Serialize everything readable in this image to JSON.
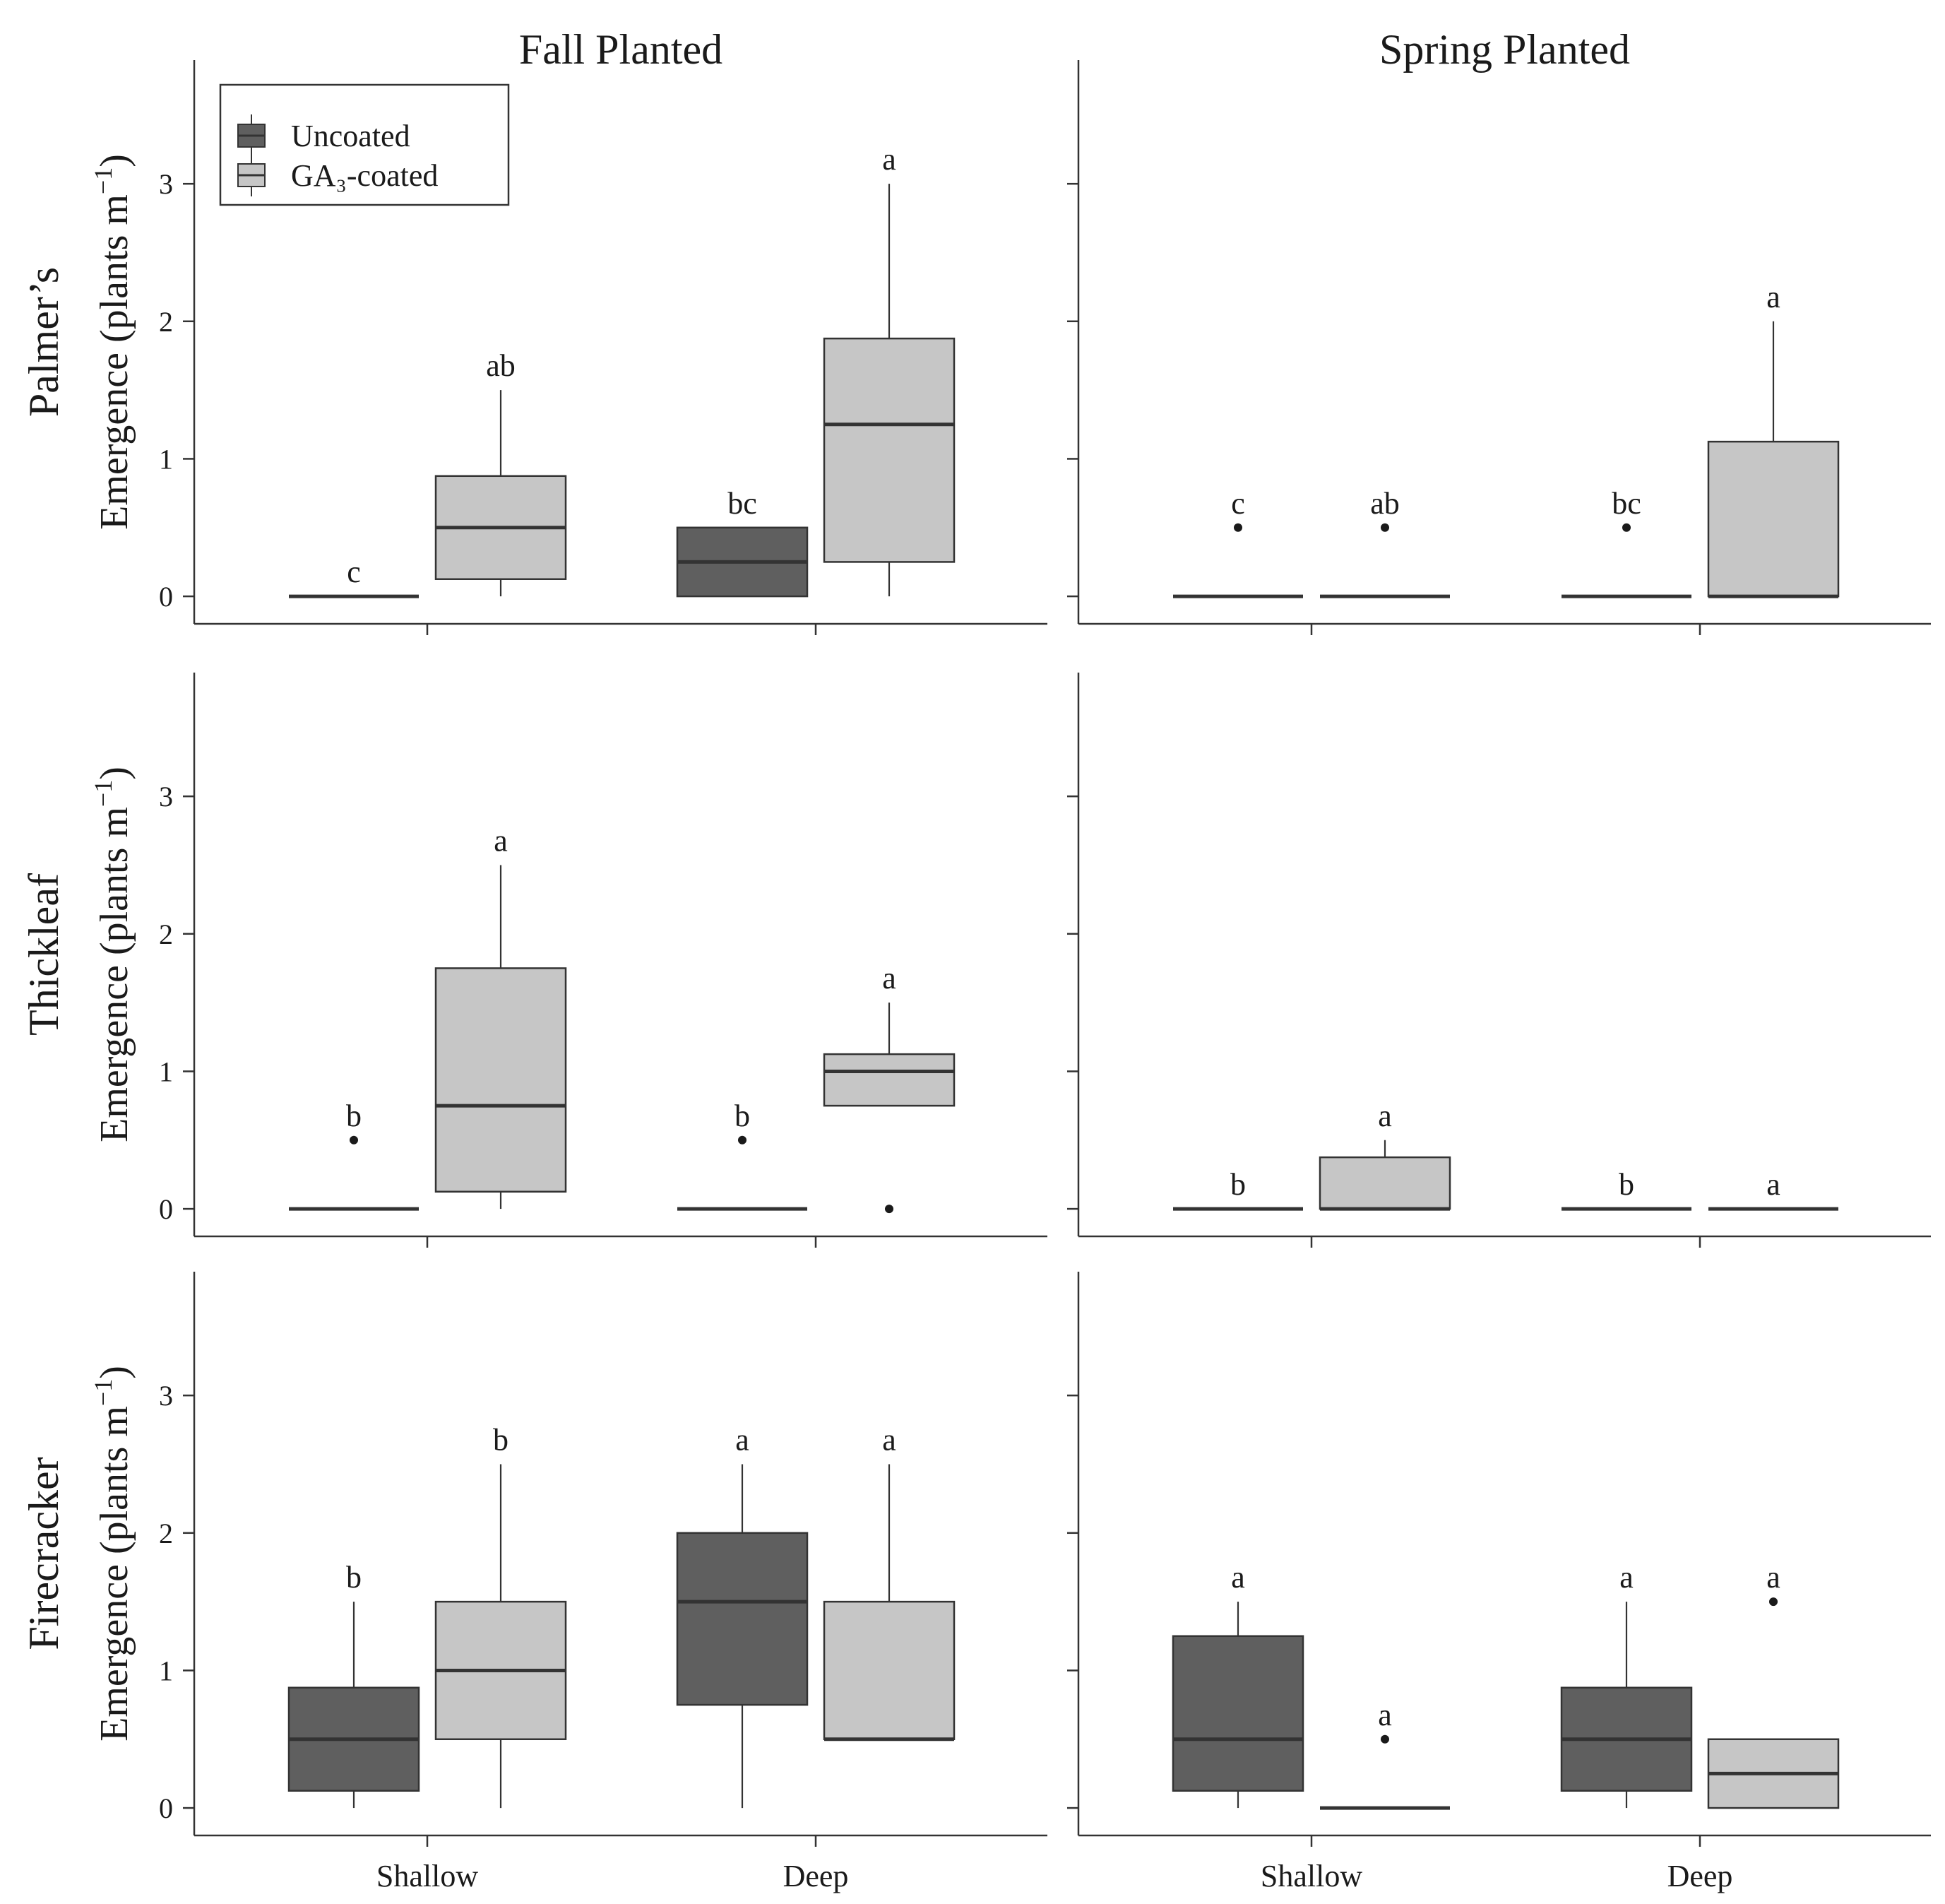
{
  "chart_data": {
    "type": "boxplot",
    "columns": [
      "Fall Planted",
      "Spring Planted"
    ],
    "rows": [
      {
        "name": "Palmer’s",
        "ylabel": "Emergence (plants m",
        "ylabel_sup": "−1",
        "ylabel_close": ")"
      },
      {
        "name": "Thickleaf",
        "ylabel": "Emergence (plants m",
        "ylabel_sup": "−1",
        "ylabel_close": ")"
      },
      {
        "name": "Firecracker",
        "ylabel": "Emergence (plants m",
        "ylabel_sup": "−1",
        "ylabel_close": ")"
      }
    ],
    "categories": [
      "Shallow",
      "Deep"
    ],
    "yticks": [
      "0",
      "1",
      "2",
      "3"
    ],
    "ylim": [
      -0.2,
      3.9
    ],
    "legend": {
      "position": "top-left",
      "entries": [
        {
          "label": "Uncoated",
          "color": "#5f5f5f"
        },
        {
          "label": "GA₃-coated",
          "color": "#c6c6c6"
        }
      ]
    },
    "colors": {
      "uncoated": "#5f5f5f",
      "coated": "#c6c6c6",
      "line": "#333333"
    },
    "panels": [
      {
        "row": 0,
        "col": 0,
        "boxes": [
          {
            "category": "Shallow",
            "series": "Uncoated",
            "min": 0,
            "q1": 0,
            "median": 0,
            "q3": 0,
            "max": 0,
            "outliers": [],
            "letter": "c"
          },
          {
            "category": "Shallow",
            "series": "GA₃-coated",
            "min": 0,
            "q1": 0.125,
            "median": 0.5,
            "q3": 0.875,
            "max": 1.5,
            "outliers": [],
            "letter": "ab"
          },
          {
            "category": "Deep",
            "series": "Uncoated",
            "min": 0,
            "q1": 0,
            "median": 0.25,
            "q3": 0.5,
            "max": 0.5,
            "outliers": [],
            "letter": "bc"
          },
          {
            "category": "Deep",
            "series": "GA₃-coated",
            "min": 0,
            "q1": 0.25,
            "median": 1.25,
            "q3": 1.875,
            "max": 3,
            "outliers": [],
            "letter": "a"
          }
        ]
      },
      {
        "row": 0,
        "col": 1,
        "boxes": [
          {
            "category": "Shallow",
            "series": "Uncoated",
            "min": 0,
            "q1": 0,
            "median": 0,
            "q3": 0,
            "max": 0,
            "outliers": [
              0.5
            ],
            "letter": "c"
          },
          {
            "category": "Shallow",
            "series": "GA₃-coated",
            "min": 0,
            "q1": 0,
            "median": 0,
            "q3": 0,
            "max": 0,
            "outliers": [
              0.5
            ],
            "letter": "ab"
          },
          {
            "category": "Deep",
            "series": "Uncoated",
            "min": 0,
            "q1": 0,
            "median": 0,
            "q3": 0,
            "max": 0,
            "outliers": [
              0.5
            ],
            "letter": "bc"
          },
          {
            "category": "Deep",
            "series": "GA₃-coated",
            "min": 0,
            "q1": 0,
            "median": 0,
            "q3": 1.125,
            "max": 2,
            "outliers": [],
            "letter": "a"
          }
        ]
      },
      {
        "row": 1,
        "col": 0,
        "boxes": [
          {
            "category": "Shallow",
            "series": "Uncoated",
            "min": 0,
            "q1": 0,
            "median": 0,
            "q3": 0,
            "max": 0,
            "outliers": [
              0.5
            ],
            "letter": "b"
          },
          {
            "category": "Shallow",
            "series": "GA₃-coated",
            "min": 0,
            "q1": 0.125,
            "median": 0.75,
            "q3": 1.75,
            "max": 2.5,
            "outliers": [],
            "letter": "a"
          },
          {
            "category": "Deep",
            "series": "Uncoated",
            "min": 0,
            "q1": 0,
            "median": 0,
            "q3": 0,
            "max": 0,
            "outliers": [
              0.5
            ],
            "letter": "b"
          },
          {
            "category": "Deep",
            "series": "GA₃-coated",
            "min": 0.75,
            "q1": 0.75,
            "median": 1,
            "q3": 1.125,
            "max": 1.5,
            "outliers": [
              0
            ],
            "letter": "a"
          }
        ]
      },
      {
        "row": 1,
        "col": 1,
        "boxes": [
          {
            "category": "Shallow",
            "series": "Uncoated",
            "min": 0,
            "q1": 0,
            "median": 0,
            "q3": 0,
            "max": 0,
            "outliers": [],
            "letter": "b"
          },
          {
            "category": "Shallow",
            "series": "GA₃-coated",
            "min": 0,
            "q1": 0,
            "median": 0,
            "q3": 0.375,
            "max": 0.5,
            "outliers": [],
            "letter": "a"
          },
          {
            "category": "Deep",
            "series": "Uncoated",
            "min": 0,
            "q1": 0,
            "median": 0,
            "q3": 0,
            "max": 0,
            "outliers": [],
            "letter": "b"
          },
          {
            "category": "Deep",
            "series": "GA₃-coated",
            "min": 0,
            "q1": 0,
            "median": 0,
            "q3": 0,
            "max": 0,
            "outliers": [],
            "letter": "a"
          }
        ]
      },
      {
        "row": 2,
        "col": 0,
        "boxes": [
          {
            "category": "Shallow",
            "series": "Uncoated",
            "min": 0,
            "q1": 0.125,
            "median": 0.5,
            "q3": 0.875,
            "max": 1.5,
            "outliers": [],
            "letter": "b"
          },
          {
            "category": "Shallow",
            "series": "GA₃-coated",
            "min": 0,
            "q1": 0.5,
            "median": 1,
            "q3": 1.5,
            "max": 2.5,
            "outliers": [],
            "letter": "b"
          },
          {
            "category": "Deep",
            "series": "Uncoated",
            "min": 0,
            "q1": 0.75,
            "median": 1.5,
            "q3": 2,
            "max": 2.5,
            "outliers": [],
            "letter": "a"
          },
          {
            "category": "Deep",
            "series": "GA₃-coated",
            "min": 0.5,
            "q1": 0.5,
            "median": 0.5,
            "q3": 1.5,
            "max": 2.5,
            "outliers": [],
            "letter": "a"
          }
        ]
      },
      {
        "row": 2,
        "col": 1,
        "boxes": [
          {
            "category": "Shallow",
            "series": "Uncoated",
            "min": 0,
            "q1": 0.125,
            "median": 0.5,
            "q3": 1.25,
            "max": 1.5,
            "outliers": [],
            "letter": "a"
          },
          {
            "category": "Shallow",
            "series": "GA₃-coated",
            "min": 0,
            "q1": 0,
            "median": 0,
            "q3": 0,
            "max": 0,
            "outliers": [
              0.5
            ],
            "letter": "a"
          },
          {
            "category": "Deep",
            "series": "Uncoated",
            "min": 0,
            "q1": 0.125,
            "median": 0.5,
            "q3": 0.875,
            "max": 1.5,
            "outliers": [],
            "letter": "a"
          },
          {
            "category": "Deep",
            "series": "GA₃-coated",
            "min": 0,
            "q1": 0,
            "median": 0.25,
            "q3": 0.5,
            "max": 0.5,
            "outliers": [
              1.5
            ],
            "letter": "a"
          }
        ]
      }
    ]
  }
}
